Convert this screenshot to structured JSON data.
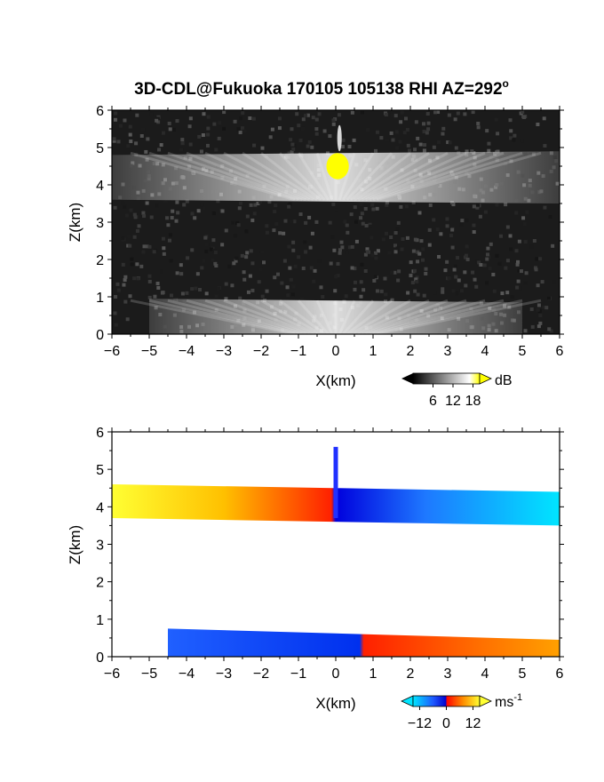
{
  "chart_data": [
    {
      "type": "heatmap",
      "title": "3D-CDL@Fukuoka 170105 105138 RHI AZ=292",
      "title_sup": "o",
      "xlabel": "X(km)",
      "ylabel": "Z(km)",
      "xlim": [
        -6,
        6
      ],
      "ylim": [
        0,
        6
      ],
      "xticks": [
        "-6",
        "-5",
        "-4",
        "-3",
        "-2",
        "-1",
        "0",
        "1",
        "2",
        "3",
        "4",
        "5",
        "6"
      ],
      "yticks": [
        "0",
        "1",
        "2",
        "3",
        "4",
        "5",
        "6"
      ],
      "colorbar": {
        "unit": "dB",
        "unit_sup": "",
        "ticks": [
          "6",
          "12",
          "18"
        ],
        "tick_values": [
          6,
          12,
          18
        ],
        "range": [
          0,
          20
        ]
      },
      "colormap": [
        "#000000",
        "#ffffff",
        "#ffff00"
      ],
      "layers": [
        {
          "kind": "noise",
          "x": [
            -6,
            6
          ],
          "z": [
            0,
            6
          ],
          "value": 1.5
        },
        {
          "kind": "layer",
          "x": [
            -6,
            6
          ],
          "z_bottom": [
            3.6,
            3.5
          ],
          "z_top": [
            4.8,
            4.9
          ],
          "value_center": 14,
          "value_edge": 4
        },
        {
          "kind": "layer",
          "x": [
            -5,
            5
          ],
          "z_bottom": [
            0,
            0
          ],
          "z_top": [
            0.95,
            0.85
          ],
          "value_center": 13,
          "value_edge": 3
        },
        {
          "kind": "spot",
          "x": 0.05,
          "z": 4.5,
          "rx": 0.3,
          "rz": 0.35,
          "value": 20
        },
        {
          "kind": "spot",
          "x": 0.1,
          "z": 5.25,
          "rx": 0.06,
          "rz": 0.35,
          "value": 16
        }
      ]
    },
    {
      "type": "heatmap",
      "title": "",
      "xlabel": "X(km)",
      "ylabel": "Z(km)",
      "xlim": [
        -6,
        6
      ],
      "ylim": [
        0,
        6
      ],
      "xticks": [
        "-6",
        "-5",
        "-4",
        "-3",
        "-2",
        "-1",
        "0",
        "1",
        "2",
        "3",
        "4",
        "5",
        "6"
      ],
      "yticks": [
        "0",
        "1",
        "2",
        "3",
        "4",
        "5",
        "6"
      ],
      "colorbar": {
        "unit": "ms",
        "unit_sup": "-1",
        "ticks": [
          "-12",
          "0",
          "12"
        ],
        "tick_values": [
          -12,
          0,
          12
        ],
        "range": [
          -15,
          15
        ]
      },
      "colormap": [
        "#00e5ff",
        "#1e5aff",
        "#0000cc",
        "#ff0000",
        "#ff8c00",
        "#ffff33"
      ],
      "layers": [
        {
          "kind": "layer",
          "x": [
            -6,
            6
          ],
          "z_bottom": [
            3.7,
            3.5
          ],
          "z_top": [
            4.6,
            4.4
          ],
          "velocity_left": 13,
          "velocity_right": -13
        },
        {
          "kind": "layer",
          "x": [
            -4.5,
            6
          ],
          "z_bottom": [
            0,
            0
          ],
          "z_top": [
            0.75,
            0.45
          ],
          "velocity_left": -9,
          "velocity_right": 8
        },
        {
          "kind": "spike",
          "x": 0,
          "z": [
            3.7,
            5.6
          ]
        }
      ]
    }
  ]
}
